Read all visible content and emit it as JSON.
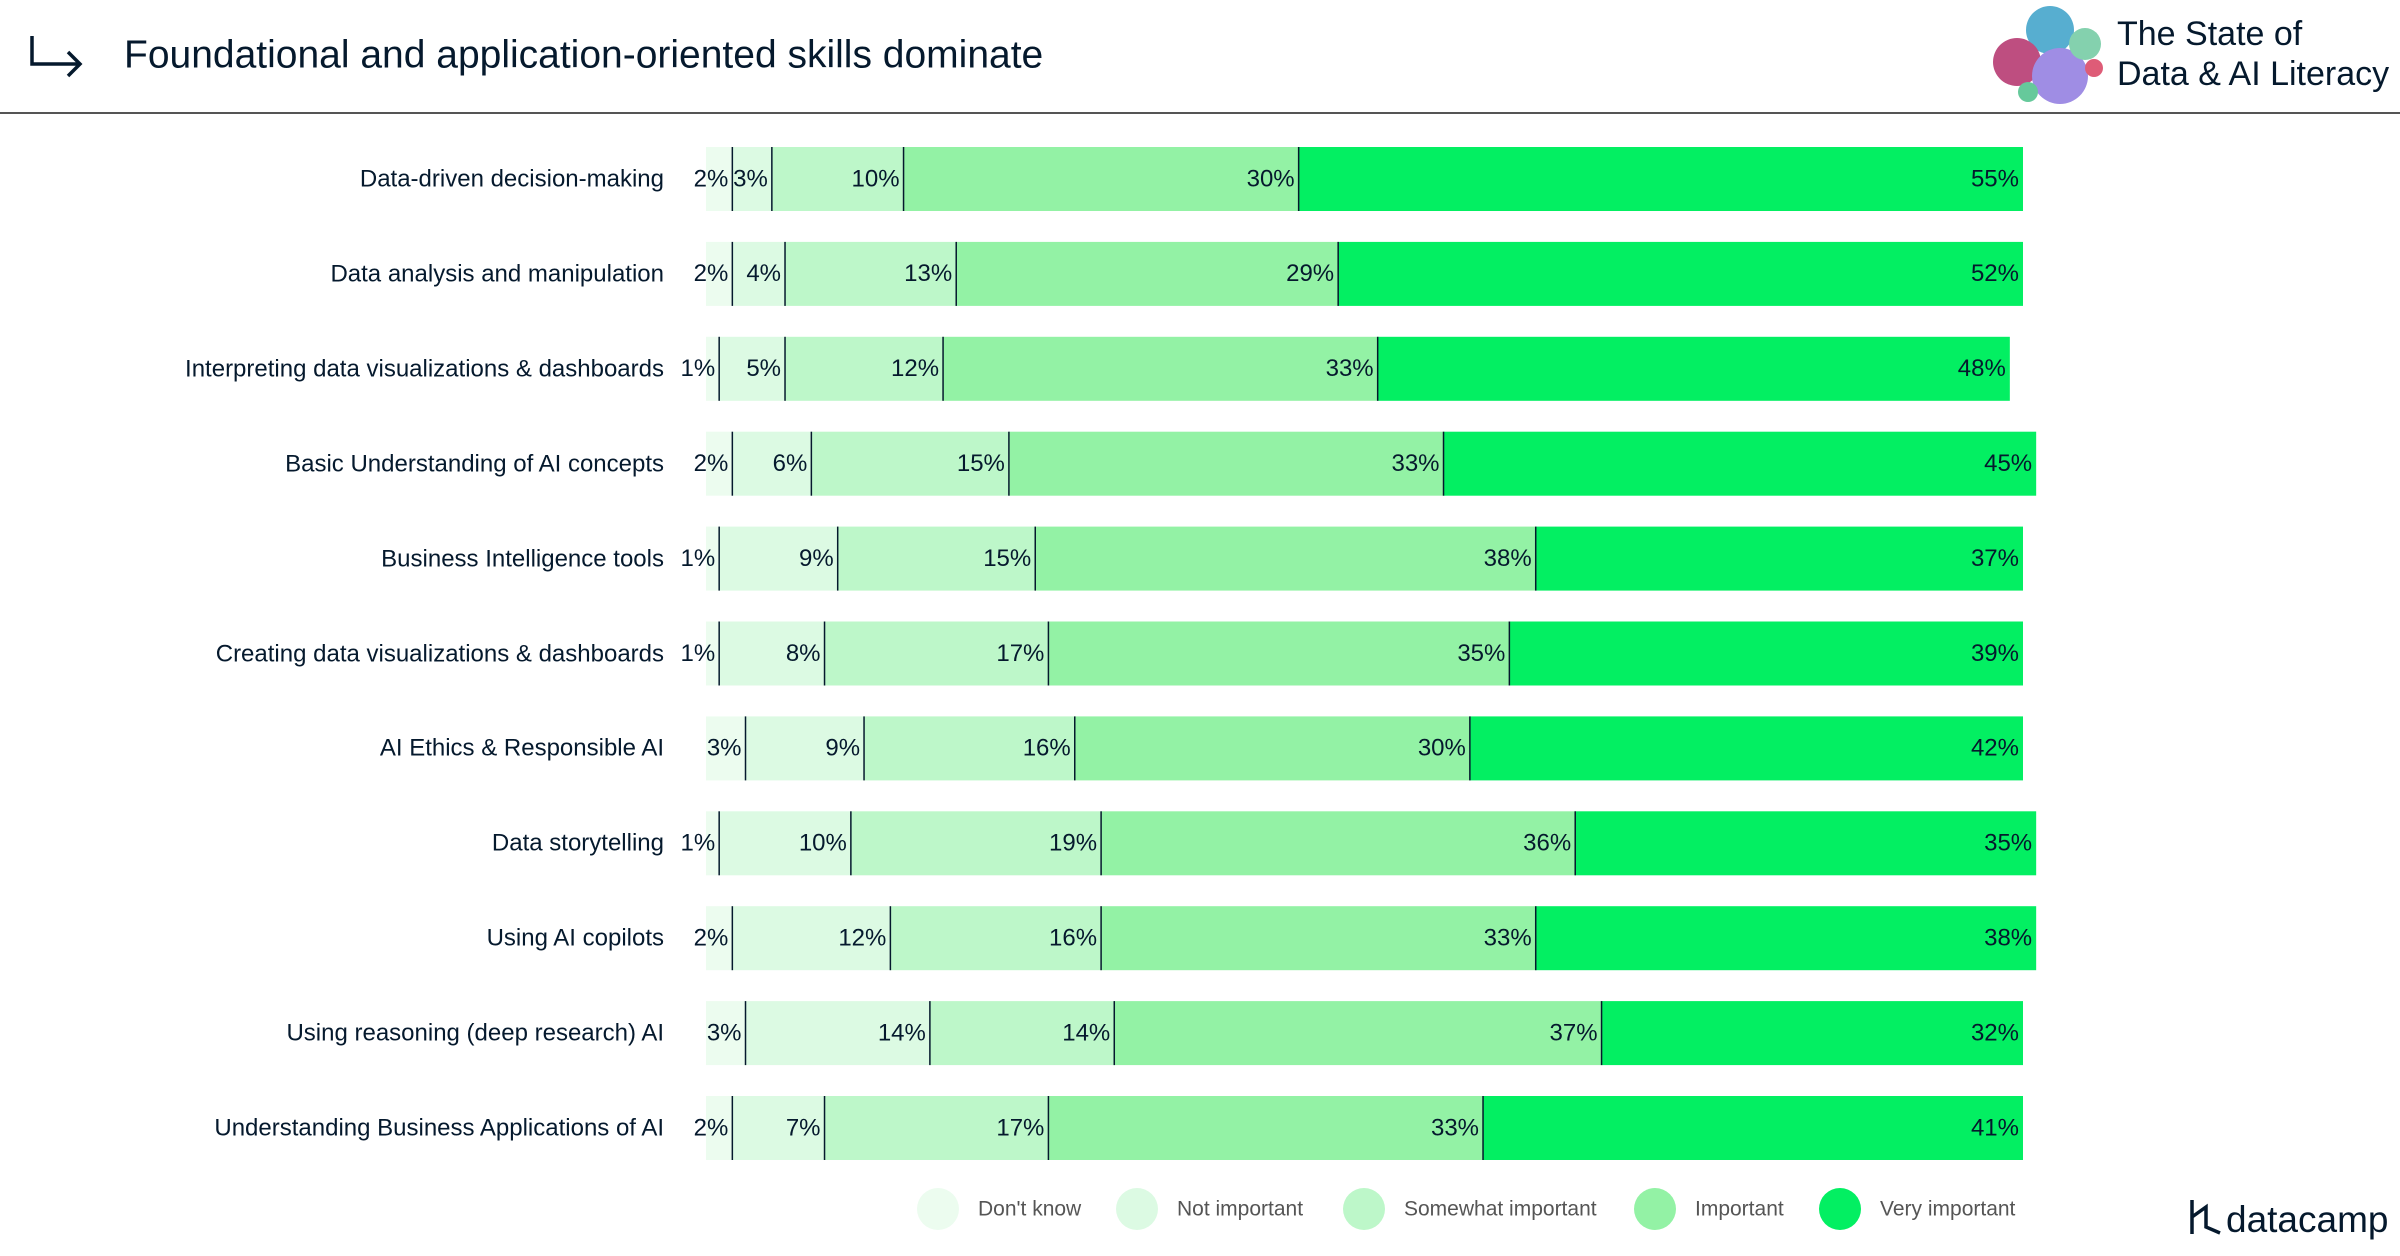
{
  "header": {
    "title": "Foundational and application-oriented skills dominate",
    "brand": [
      "The State of",
      "Data & AI Literacy"
    ],
    "logo": "datacamp"
  },
  "chart_data": {
    "type": "bar",
    "orientation": "horizontal",
    "stacked": true,
    "legend": "bottom",
    "categories": [
      "Data-driven decision-making",
      "Data analysis and manipulation",
      "Interpreting data visualizations & dashboards",
      "Basic Understanding of AI concepts",
      "Business Intelligence tools",
      "Creating data visualizations & dashboards",
      "AI Ethics & Responsible AI",
      "Data storytelling",
      "Using AI copilots",
      "Using reasoning (deep research) AI",
      "Understanding Business Applications of AI"
    ],
    "series": [
      {
        "name": "Don't know",
        "color": "#ecfcef",
        "values": [
          2,
          2,
          1,
          2,
          1,
          1,
          3,
          1,
          2,
          3,
          2
        ],
        "value_labels": [
          "2%",
          "2%",
          "1%",
          "2%",
          "1%",
          "1%",
          "3%",
          "1%",
          "2%",
          "3%",
          "2%"
        ]
      },
      {
        "name": "Not important",
        "color": "#dcfae3",
        "values": [
          3,
          4,
          5,
          6,
          9,
          8,
          9,
          10,
          12,
          14,
          7
        ],
        "value_labels": [
          "3%",
          "4%",
          "5%",
          "6%",
          "9%",
          "8%",
          "9%",
          "10%",
          "12%",
          "14%",
          "7%"
        ]
      },
      {
        "name": "Somewhat important",
        "color": "#bdf7c9",
        "values": [
          10,
          13,
          12,
          15,
          15,
          17,
          16,
          19,
          16,
          14,
          17
        ],
        "value_labels": [
          "10%",
          "13%",
          "12%",
          "15%",
          "15%",
          "17%",
          "16%",
          "19%",
          "16%",
          "14%",
          "17%"
        ]
      },
      {
        "name": "Important",
        "color": "#93f2a5",
        "values": [
          30,
          29,
          33,
          33,
          38,
          35,
          30,
          36,
          33,
          37,
          33
        ],
        "value_labels": [
          "30%",
          "29%",
          "33%",
          "33%",
          "38%",
          "35%",
          "30%",
          "36%",
          "33%",
          "37%",
          "33%"
        ]
      },
      {
        "name": "Very important",
        "color": "#03ef62",
        "values": [
          55,
          52,
          48,
          45,
          37,
          39,
          42,
          35,
          38,
          32,
          41
        ],
        "value_labels": [
          "55%",
          "52%",
          "48%",
          "45%",
          "37%",
          "39%",
          "42%",
          "35%",
          "38%",
          "32%",
          "41%"
        ]
      }
    ]
  }
}
